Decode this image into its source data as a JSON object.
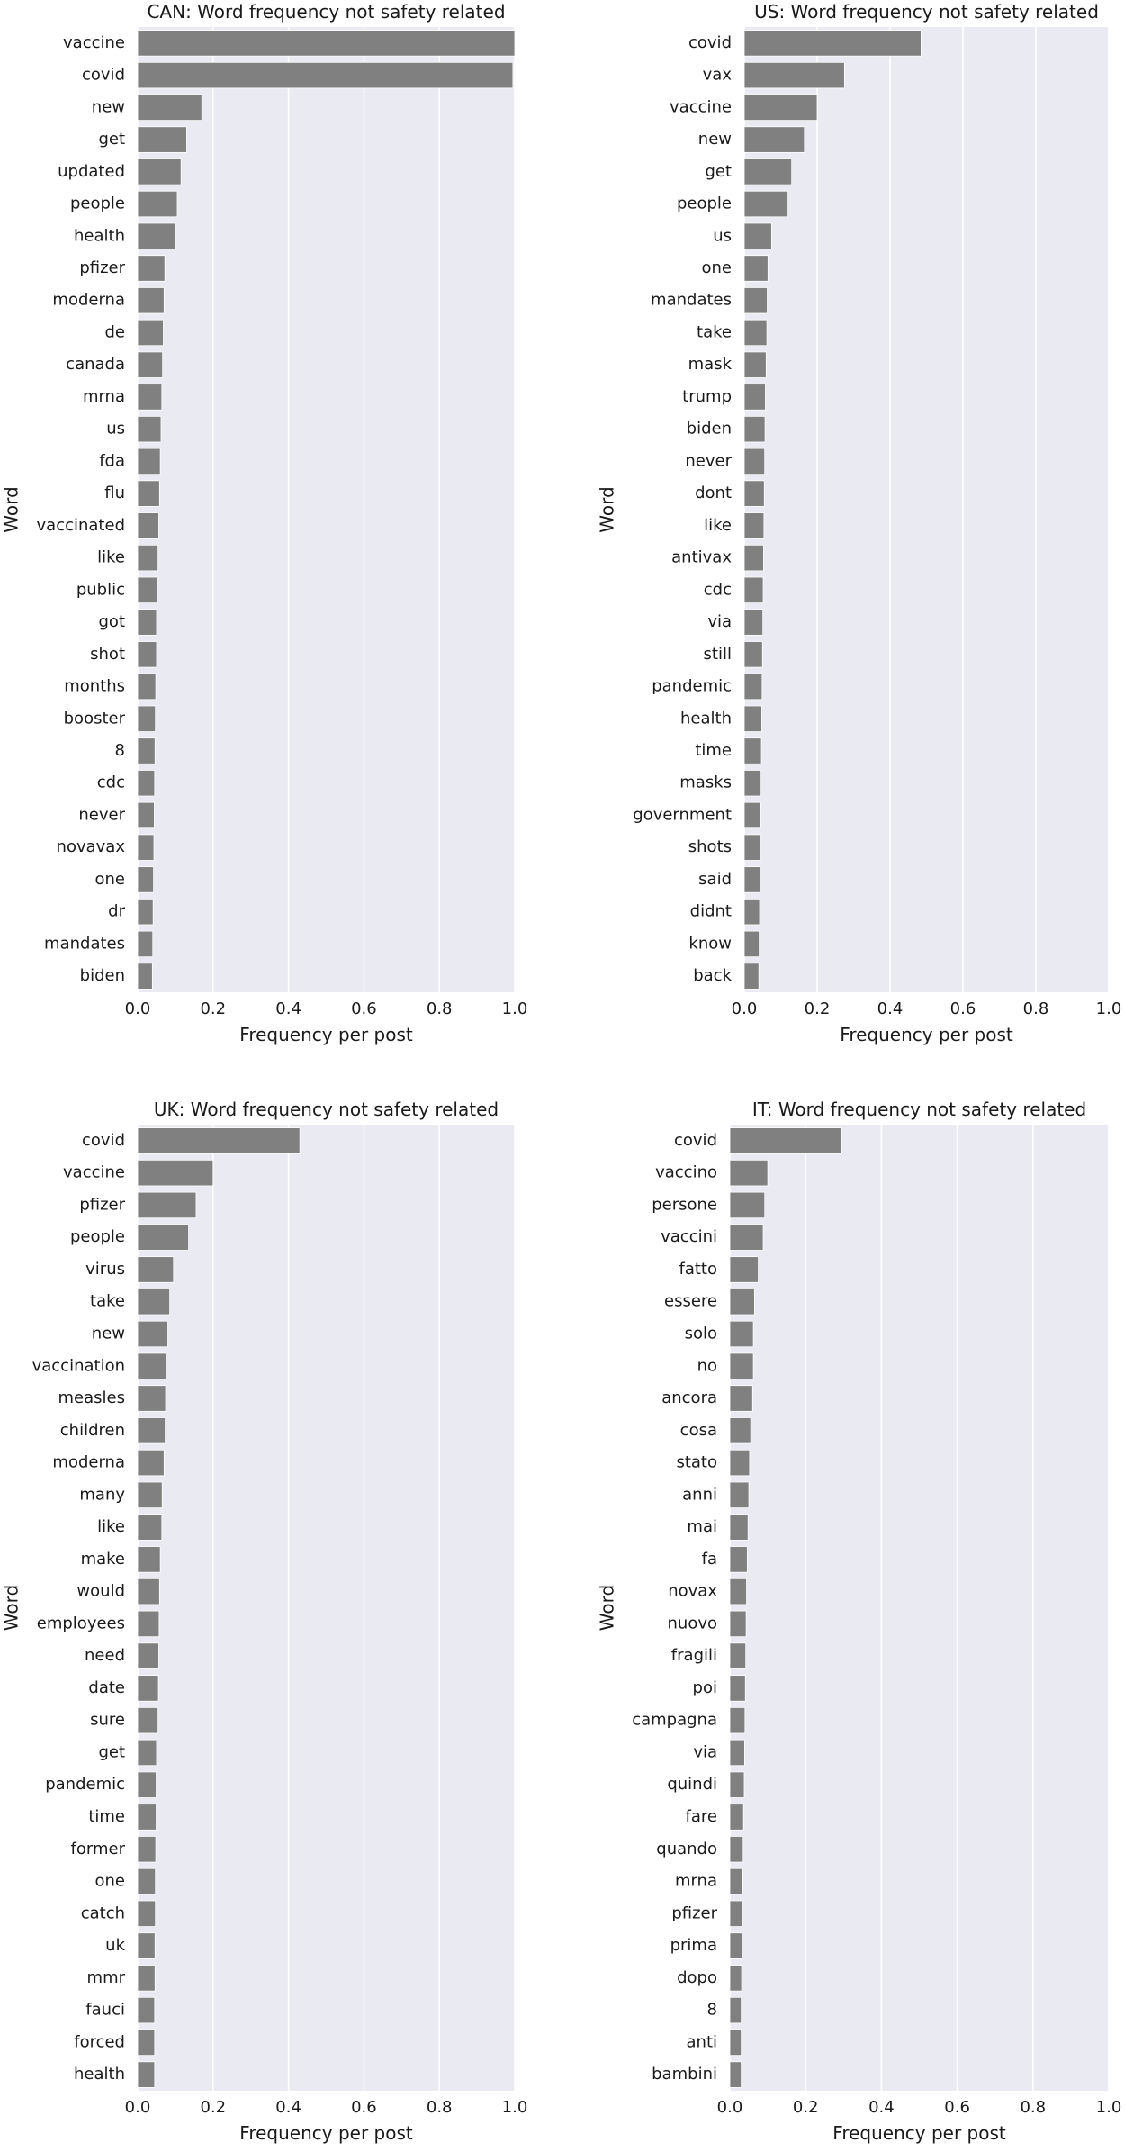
{
  "chart_data": [
    {
      "type": "bar",
      "orientation": "horizontal",
      "title": "CAN: Word frequency not safety related",
      "xlabel": "Frequency per post",
      "ylabel": "Word",
      "xlim": [
        0,
        1
      ],
      "xticks": [
        "0.0",
        "0.2",
        "0.4",
        "0.6",
        "0.8",
        "1.0"
      ],
      "grid": true,
      "categories": [
        "vaccine",
        "covid",
        "new",
        "get",
        "updated",
        "people",
        "health",
        "pfizer",
        "moderna",
        "de",
        "canada",
        "mrna",
        "us",
        "fda",
        "flu",
        "vaccinated",
        "like",
        "public",
        "got",
        "shot",
        "months",
        "booster",
        "8",
        "cdc",
        "never",
        "novavax",
        "one",
        "dr",
        "mandates",
        "biden"
      ],
      "values": [
        1.0,
        0.995,
        0.17,
        0.13,
        0.115,
        0.105,
        0.1,
        0.072,
        0.07,
        0.068,
        0.066,
        0.064,
        0.062,
        0.06,
        0.058,
        0.056,
        0.054,
        0.052,
        0.05,
        0.05,
        0.048,
        0.047,
        0.046,
        0.045,
        0.044,
        0.043,
        0.042,
        0.041,
        0.04,
        0.039
      ]
    },
    {
      "type": "bar",
      "orientation": "horizontal",
      "title": "US: Word frequency not safety related",
      "xlabel": "Frequency per post",
      "ylabel": "Word",
      "xlim": [
        0,
        1
      ],
      "xticks": [
        "0.0",
        "0.2",
        "0.4",
        "0.6",
        "0.8",
        "1.0"
      ],
      "grid": true,
      "categories": [
        "covid",
        "vax",
        "vaccine",
        "new",
        "get",
        "people",
        "us",
        "one",
        "mandates",
        "take",
        "mask",
        "trump",
        "biden",
        "never",
        "dont",
        "like",
        "antivax",
        "cdc",
        "via",
        "still",
        "pandemic",
        "health",
        "time",
        "masks",
        "government",
        "shots",
        "said",
        "didnt",
        "know",
        "back"
      ],
      "values": [
        0.485,
        0.275,
        0.2,
        0.165,
        0.13,
        0.12,
        0.075,
        0.065,
        0.063,
        0.062,
        0.06,
        0.058,
        0.057,
        0.056,
        0.055,
        0.054,
        0.053,
        0.052,
        0.051,
        0.05,
        0.049,
        0.048,
        0.047,
        0.046,
        0.045,
        0.044,
        0.043,
        0.042,
        0.041,
        0.04
      ]
    },
    {
      "type": "bar",
      "orientation": "horizontal",
      "title": "UK: Word frequency not safety related",
      "xlabel": "Frequency per post",
      "ylabel": "Word",
      "xlim": [
        0,
        1
      ],
      "xticks": [
        "0.0",
        "0.2",
        "0.4",
        "0.6",
        "0.8",
        "1.0"
      ],
      "grid": true,
      "categories": [
        "covid",
        "vaccine",
        "pfizer",
        "people",
        "virus",
        "take",
        "new",
        "vaccination",
        "measles",
        "children",
        "moderna",
        "many",
        "like",
        "make",
        "would",
        "employees",
        "need",
        "date",
        "sure",
        "get",
        "pandemic",
        "time",
        "former",
        "one",
        "catch",
        "uk",
        "mmr",
        "fauci",
        "forced",
        "health"
      ],
      "values": [
        0.43,
        0.2,
        0.155,
        0.135,
        0.095,
        0.085,
        0.08,
        0.075,
        0.074,
        0.073,
        0.07,
        0.065,
        0.064,
        0.06,
        0.058,
        0.057,
        0.056,
        0.055,
        0.054,
        0.05,
        0.049,
        0.049,
        0.048,
        0.047,
        0.047,
        0.046,
        0.046,
        0.045,
        0.045,
        0.045
      ]
    },
    {
      "type": "bar",
      "orientation": "horizontal",
      "title": "IT: Word frequency not safety related",
      "xlabel": "Frequency per post",
      "ylabel": "Word",
      "xlim": [
        0,
        1
      ],
      "xticks": [
        "0.0",
        "0.2",
        "0.4",
        "0.6",
        "0.8",
        "1.0"
      ],
      "grid": true,
      "categories": [
        "covid",
        "vaccino",
        "persone",
        "vaccini",
        "fatto",
        "essere",
        "solo",
        "no",
        "ancora",
        "cosa",
        "stato",
        "anni",
        "mai",
        "fa",
        "novax",
        "nuovo",
        "fragili",
        "poi",
        "campagna",
        "via",
        "quindi",
        "fare",
        "quando",
        "mrna",
        "pfizer",
        "prima",
        "dopo",
        "8",
        "anti",
        "bambini"
      ],
      "values": [
        0.295,
        0.1,
        0.092,
        0.088,
        0.075,
        0.065,
        0.062,
        0.062,
        0.06,
        0.055,
        0.052,
        0.05,
        0.048,
        0.046,
        0.044,
        0.043,
        0.042,
        0.041,
        0.04,
        0.039,
        0.038,
        0.036,
        0.035,
        0.034,
        0.033,
        0.032,
        0.031,
        0.03,
        0.03,
        0.03
      ]
    }
  ]
}
